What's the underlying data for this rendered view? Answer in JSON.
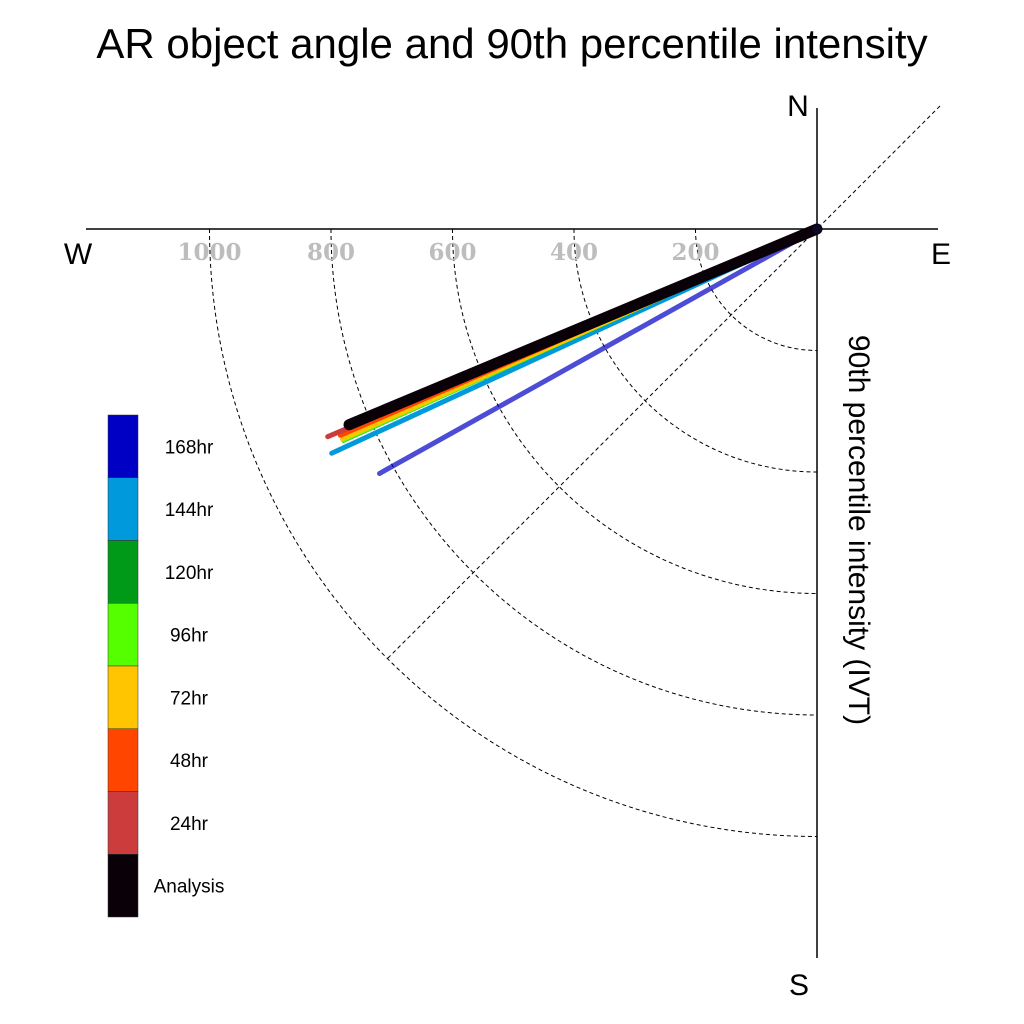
{
  "chart_data": {
    "type": "polar-line",
    "title": "AR object angle and 90th percentile intensity",
    "ylabel": "90th percentile intensity (IVT)",
    "compass": {
      "n": "N",
      "e": "E",
      "s": "S",
      "w": "W"
    },
    "rings": [
      200,
      400,
      600,
      800,
      1000
    ],
    "tick_labels": [
      "1000",
      "800",
      "600",
      "400",
      "200"
    ],
    "rlim": [
      0,
      1200
    ],
    "angle_unit": "degrees below west",
    "series": [
      {
        "name": "Analysis",
        "color": "#0a0008",
        "angle": 22.7,
        "intensity": 835,
        "width": 11
      },
      {
        "name": "24hr",
        "color": "#cc3c3c",
        "angle": 23.0,
        "intensity": 875,
        "width": 5
      },
      {
        "name": "48hr",
        "color": "#ff4500",
        "angle": 23.4,
        "intensity": 855,
        "width": 5
      },
      {
        "name": "72hr",
        "color": "#ffc500",
        "angle": 23.9,
        "intensity": 855,
        "width": 4
      },
      {
        "name": "96hr",
        "color": "#55ff00",
        "angle": 24.1,
        "intensity": 855,
        "width": 3
      },
      {
        "name": "120hr",
        "color": "#009a18",
        "angle": 24.2,
        "intensity": 855,
        "width": 2
      },
      {
        "name": "144hr",
        "color": "#009adc",
        "angle": 24.8,
        "intensity": 880,
        "width": 5
      },
      {
        "name": "168hr",
        "color": "#0000c4",
        "angle": 29.2,
        "intensity": 825,
        "width": 5,
        "opacity": 0.7
      }
    ]
  },
  "legend": {
    "items": [
      {
        "label": "168hr",
        "color": "#0000c4"
      },
      {
        "label": "144hr",
        "color": "#009adc"
      },
      {
        "label": "120hr",
        "color": "#009a18"
      },
      {
        "label": "96hr",
        "color": "#55ff00"
      },
      {
        "label": "72hr",
        "color": "#ffc500"
      },
      {
        "label": "48hr",
        "color": "#ff4500"
      },
      {
        "label": "24hr",
        "color": "#cc3c3c"
      },
      {
        "label": "Analysis",
        "color": "#0a0008"
      }
    ]
  }
}
